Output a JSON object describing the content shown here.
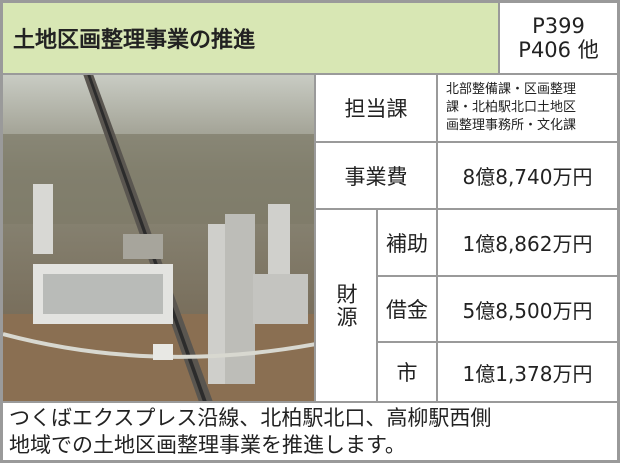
{
  "header": {
    "title": "土地区画整理事業の推進",
    "pages": [
      "P399",
      "P406 他"
    ]
  },
  "table": {
    "rows": [
      {
        "label": "担当課",
        "lines": [
          "北部整備課・区画整理",
          "課・北柏駅北口土地区",
          "画整理事務所・文化課"
        ]
      },
      {
        "label": "事業費",
        "value": "8億8,740万円"
      }
    ],
    "funding": {
      "label": "財源",
      "items": [
        {
          "label": "補助",
          "value": "1億8,862万円"
        },
        {
          "label": "借金",
          "value": "5億8,500万円"
        },
        {
          "label": "市",
          "value": "1億1,378万円"
        }
      ]
    }
  },
  "footer": {
    "lines": [
      "つくばエクスプレス沿線、北柏駅北口、高柳駅西側",
      "地域での土地区画整理事業を推進します。"
    ]
  }
}
